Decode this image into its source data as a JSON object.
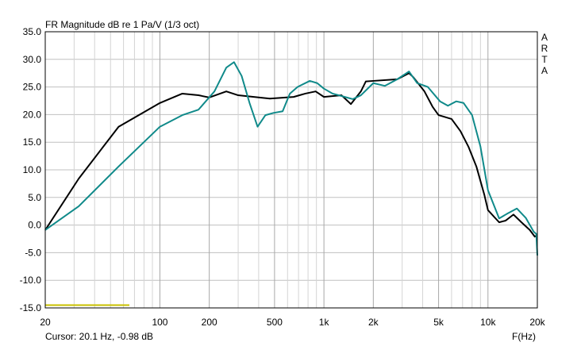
{
  "chart_data": {
    "type": "line",
    "title": "FR Magnitude dB re 1 Pa/V (1/3 oct)",
    "side_label": "ARTA",
    "cursor_label": "Cursor: 20.1 Hz, -0.98 dB",
    "x_label": "F(Hz)",
    "x_scale": "log",
    "xlim": [
      20,
      20000
    ],
    "xticks": [
      20,
      100,
      200,
      500,
      {
        "value": 1000,
        "label": "1k"
      },
      {
        "value": 2000,
        "label": "2k"
      },
      {
        "value": 5000,
        "label": "5k"
      },
      {
        "value": 10000,
        "label": "10k"
      },
      {
        "value": 20000,
        "label": "20k"
      }
    ],
    "xminor": [
      30,
      40,
      50,
      60,
      70,
      80,
      90,
      300,
      400,
      600,
      700,
      800,
      900,
      3000,
      4000,
      6000,
      7000,
      8000,
      9000
    ],
    "ylim": [
      -15,
      35
    ],
    "yticks": [
      {
        "value": 35,
        "label": "35.0"
      },
      {
        "value": 30,
        "label": "30.0"
      },
      {
        "value": 25,
        "label": "25.0"
      },
      {
        "value": 20,
        "label": "20.0"
      },
      {
        "value": 15,
        "label": "15.0"
      },
      {
        "value": 10,
        "label": "10.0"
      },
      {
        "value": 5,
        "label": "5.0"
      },
      {
        "value": 0,
        "label": "0.0"
      },
      {
        "value": -5,
        "label": "-5.0"
      },
      {
        "value": -10,
        "label": "-10.0"
      },
      {
        "value": -15,
        "label": "-15.0"
      }
    ],
    "grid": true,
    "series": [
      {
        "color": "#000000",
        "x": [
          20,
          32,
          56,
          100,
          137,
          172,
          200,
          254,
          300,
          374,
          468,
          654,
          770,
          890,
          1000,
          1280,
          1460,
          1680,
          1800,
          2000,
          2800,
          3300,
          3500,
          4100,
          4600,
          5000,
          6000,
          6800,
          7600,
          8500,
          9500,
          10000,
          11700,
          12800,
          14300,
          16000,
          18000,
          19300,
          20000
        ],
        "values": [
          -0.9,
          8.4,
          17.8,
          22.1,
          23.8,
          23.5,
          23.1,
          24.2,
          23.5,
          23.2,
          22.9,
          23.2,
          23.8,
          24.2,
          23.2,
          23.5,
          21.9,
          24.2,
          26.0,
          26.1,
          26.4,
          27.5,
          26.8,
          24.2,
          21.4,
          19.9,
          19.2,
          17.0,
          14.2,
          10.6,
          5.5,
          2.7,
          0.5,
          0.8,
          1.9,
          0.5,
          -0.9,
          -2.1,
          -1.8
        ]
      },
      {
        "color": "#108a8a",
        "x": [
          20,
          32,
          56,
          100,
          137,
          172,
          215,
          254,
          283,
          315,
          352,
          394,
          440,
          492,
          560,
          620,
          690,
          820,
          910,
          1000,
          1130,
          1340,
          1500,
          1680,
          2000,
          2350,
          2800,
          3300,
          3700,
          4300,
          5100,
          5700,
          6400,
          7100,
          8000,
          9000,
          10000,
          11700,
          13000,
          15000,
          17000,
          19000,
          19700,
          20000
        ],
        "values": [
          -0.9,
          3.4,
          10.6,
          17.8,
          19.9,
          20.9,
          24.2,
          28.5,
          29.5,
          27.0,
          22.1,
          17.8,
          19.9,
          20.3,
          20.6,
          23.8,
          25.0,
          26.1,
          25.7,
          24.7,
          23.8,
          23.2,
          22.8,
          23.5,
          25.7,
          25.2,
          26.4,
          27.8,
          25.7,
          25.0,
          22.4,
          21.6,
          22.4,
          22.1,
          19.9,
          14.2,
          6.3,
          1.2,
          2.0,
          3.0,
          1.3,
          -1.2,
          -1.6,
          -5.5
        ]
      }
    ]
  }
}
